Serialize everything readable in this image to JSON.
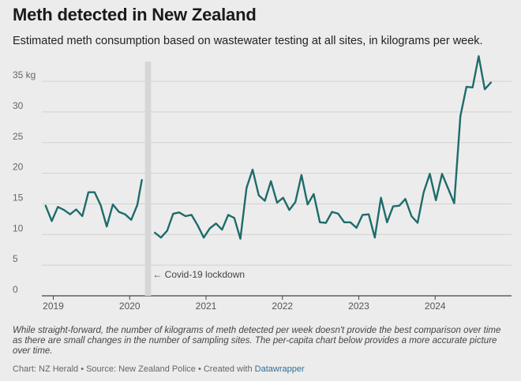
{
  "chart_data": {
    "type": "line",
    "title": "Meth detected in New Zealand",
    "subtitle": "Estimated meth consumption based on wastewater testing at all sites, in kilograms per week.",
    "ylim": [
      0,
      39
    ],
    "y_ticks": [
      0,
      5,
      10,
      15,
      20,
      25,
      30,
      35
    ],
    "y_tick_labels": [
      "0",
      "5",
      "10",
      "15",
      "20",
      "25",
      "30",
      "35 kg"
    ],
    "x_tick_labels": [
      "2019",
      "2020",
      "2021",
      "2022",
      "2023",
      "2024"
    ],
    "x_ticks": [
      2019,
      2020,
      2021,
      2022,
      2023,
      2024
    ],
    "xlim": [
      2018.85,
      2025.0
    ],
    "grid": true,
    "color": "#1f6b6b",
    "shaded_region": {
      "from": 2020.2,
      "to": 2020.28
    },
    "annotation": {
      "text": "← Covid-19 lockdown",
      "x": 2020.28,
      "y": 3.5
    },
    "series": [
      {
        "segments": [
          [
            [
              2018.9,
              14.7
            ],
            [
              2018.98,
              12.2
            ],
            [
              2019.06,
              14.5
            ],
            [
              2019.14,
              14.0
            ],
            [
              2019.22,
              13.3
            ],
            [
              2019.3,
              14.1
            ],
            [
              2019.38,
              13.0
            ],
            [
              2019.46,
              16.9
            ],
            [
              2019.54,
              16.9
            ],
            [
              2019.62,
              14.8
            ],
            [
              2019.7,
              11.3
            ],
            [
              2019.78,
              14.9
            ],
            [
              2019.86,
              13.7
            ],
            [
              2019.94,
              13.3
            ],
            [
              2020.02,
              12.4
            ],
            [
              2020.1,
              14.8
            ],
            [
              2020.16,
              18.9
            ]
          ],
          [
            [
              2020.33,
              10.3
            ],
            [
              2020.41,
              9.5
            ],
            [
              2020.49,
              10.6
            ],
            [
              2020.57,
              13.4
            ],
            [
              2020.65,
              13.6
            ],
            [
              2020.73,
              13.0
            ],
            [
              2020.81,
              13.2
            ],
            [
              2020.89,
              11.5
            ],
            [
              2020.97,
              9.5
            ],
            [
              2021.05,
              11.0
            ],
            [
              2021.13,
              11.8
            ],
            [
              2021.21,
              10.8
            ],
            [
              2021.29,
              13.2
            ],
            [
              2021.37,
              12.7
            ],
            [
              2021.45,
              9.3
            ],
            [
              2021.53,
              17.6
            ],
            [
              2021.61,
              20.6
            ],
            [
              2021.69,
              16.4
            ],
            [
              2021.77,
              15.5
            ],
            [
              2021.85,
              18.7
            ],
            [
              2021.93,
              15.2
            ],
            [
              2022.01,
              16.0
            ],
            [
              2022.09,
              14.0
            ],
            [
              2022.17,
              15.3
            ],
            [
              2022.25,
              19.7
            ],
            [
              2022.33,
              14.9
            ],
            [
              2022.41,
              16.6
            ],
            [
              2022.49,
              12.0
            ],
            [
              2022.57,
              11.9
            ],
            [
              2022.65,
              13.7
            ],
            [
              2022.73,
              13.4
            ],
            [
              2022.81,
              12.0
            ],
            [
              2022.89,
              12.0
            ],
            [
              2022.97,
              11.1
            ],
            [
              2023.05,
              13.2
            ],
            [
              2023.13,
              13.3
            ],
            [
              2023.21,
              9.5
            ],
            [
              2023.29,
              16.0
            ],
            [
              2023.37,
              12.0
            ],
            [
              2023.45,
              14.6
            ],
            [
              2023.53,
              14.7
            ],
            [
              2023.61,
              15.8
            ],
            [
              2023.69,
              13.0
            ],
            [
              2023.77,
              11.9
            ],
            [
              2023.85,
              16.9
            ],
            [
              2023.93,
              19.9
            ],
            [
              2024.01,
              15.6
            ],
            [
              2024.09,
              19.9
            ],
            [
              2024.17,
              17.5
            ],
            [
              2024.25,
              15.1
            ],
            [
              2024.33,
              29.3
            ],
            [
              2024.41,
              34.1
            ],
            [
              2024.49,
              34.0
            ],
            [
              2024.57,
              39.1
            ],
            [
              2024.65,
              33.7
            ],
            [
              2024.73,
              34.8
            ]
          ]
        ]
      }
    ]
  },
  "footer": {
    "notes": "While straight-forward, the number of kilograms of meth detected per week doesn't provide the best comparison over time as there are small changes in the number of sampling sites. The per-capita chart below provides a more accurate picture over time.",
    "credit_prefix": "Chart: NZ Herald • Source: New Zealand Police • Created with ",
    "credit_link": "Datawrapper"
  }
}
